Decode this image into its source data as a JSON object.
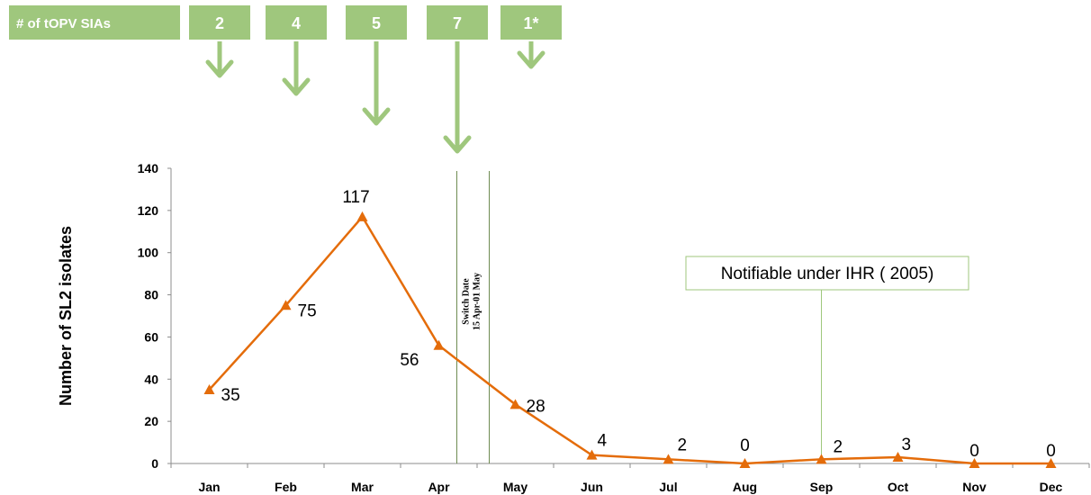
{
  "sia": {
    "header_label": "# of tOPV SIAs",
    "counts": [
      {
        "label": "2",
        "month": "Jan"
      },
      {
        "label": "4",
        "month": "Feb"
      },
      {
        "label": "5",
        "month": "Mar"
      },
      {
        "label": "7",
        "month": "Apr"
      },
      {
        "label": "1*",
        "month": "May"
      }
    ],
    "color": "#9fc77d"
  },
  "switch_note": {
    "line1": "Switch Date",
    "line2": "15 Apr-01 May"
  },
  "callout": {
    "text": "Notifiable under IHR ( 2005)",
    "month": "Sep"
  },
  "chart_data": {
    "type": "line",
    "categories": [
      "Jan",
      "Feb",
      "Mar",
      "Apr",
      "May",
      "Jun",
      "Jul",
      "Aug",
      "Sep",
      "Oct",
      "Nov",
      "Dec"
    ],
    "series": [
      {
        "values": [
          35,
          75,
          117,
          56,
          28,
          4,
          2,
          0,
          2,
          3,
          0,
          0
        ],
        "color": "#e46c0a"
      }
    ],
    "data_labels": [
      "35",
      "75",
      "117",
      "56",
      "28",
      "4",
      "2",
      "0",
      "2",
      "3",
      "0",
      "0"
    ],
    "ylabel": "Number of SL2 isolates",
    "xlabel": "",
    "ylim": [
      0,
      140
    ],
    "yticks": [
      "0",
      "20",
      "40",
      "60",
      "80",
      "100",
      "120",
      "140"
    ],
    "grid": false,
    "legend": "none"
  }
}
